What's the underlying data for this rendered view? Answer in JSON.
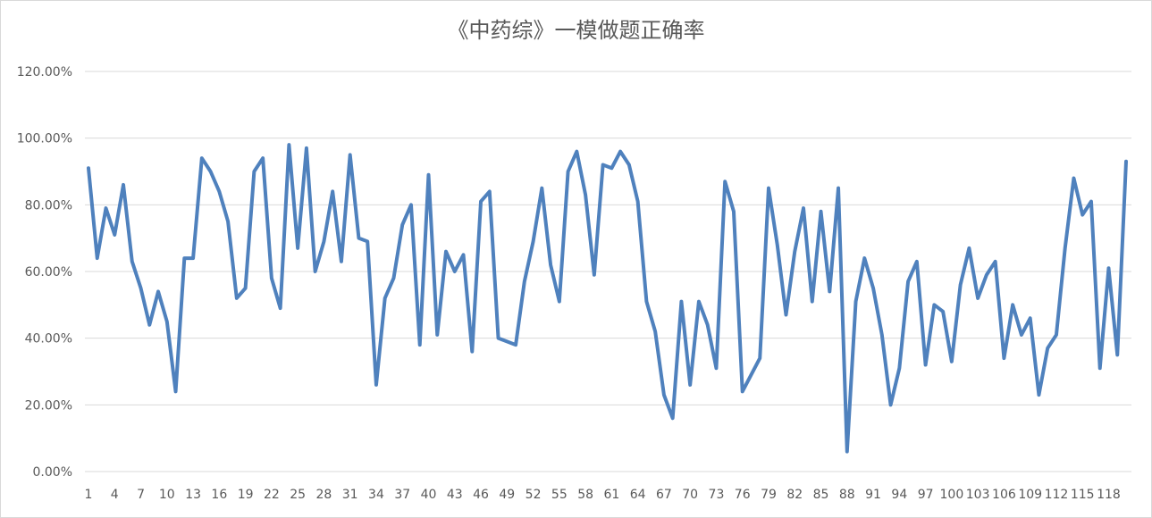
{
  "chart_data": {
    "type": "line",
    "title": "《中药综》一模做题正确率",
    "xlabel": "",
    "ylabel": "",
    "ylim": [
      0,
      1.2
    ],
    "yticks": [
      0,
      0.2,
      0.4,
      0.6,
      0.8,
      1.0,
      1.2
    ],
    "ytick_labels": [
      "0.00%",
      "20.00%",
      "40.00%",
      "60.00%",
      "80.00%",
      "100.00%",
      "120.00%"
    ],
    "xtick_labels": [
      "1",
      "4",
      "7",
      "10",
      "13",
      "16",
      "19",
      "22",
      "25",
      "28",
      "31",
      "34",
      "37",
      "40",
      "43",
      "46",
      "49",
      "52",
      "55",
      "58",
      "61",
      "64",
      "67",
      "70",
      "73",
      "76",
      "79",
      "82",
      "85",
      "88",
      "91",
      "94",
      "97",
      "100",
      "103",
      "106",
      "109",
      "112",
      "115",
      "118"
    ],
    "grid": true,
    "legend": "none",
    "color": "#4f81bd",
    "series": [
      {
        "values": [
          0.91,
          0.64,
          0.79,
          0.71,
          0.86,
          0.63,
          0.55,
          0.44,
          0.54,
          0.45,
          0.24,
          0.64,
          0.64,
          0.94,
          0.9,
          0.84,
          0.75,
          0.52,
          0.55,
          0.9,
          0.94,
          0.58,
          0.49,
          0.98,
          0.67,
          0.97,
          0.6,
          0.69,
          0.84,
          0.63,
          0.95,
          0.7,
          0.69,
          0.26,
          0.52,
          0.58,
          0.74,
          0.8,
          0.38,
          0.89,
          0.41,
          0.66,
          0.6,
          0.65,
          0.36,
          0.81,
          0.84,
          0.4,
          0.39,
          0.38,
          0.57,
          0.69,
          0.85,
          0.62,
          0.51,
          0.9,
          0.96,
          0.83,
          0.59,
          0.92,
          0.91,
          0.96,
          0.92,
          0.81,
          0.51,
          0.42,
          0.23,
          0.16,
          0.51,
          0.26,
          0.51,
          0.44,
          0.31,
          0.87,
          0.78,
          0.24,
          0.29,
          0.34,
          0.85,
          0.68,
          0.47,
          0.66,
          0.79,
          0.51,
          0.78,
          0.54,
          0.85,
          0.06,
          0.51,
          0.64,
          0.55,
          0.41,
          0.2,
          0.31,
          0.57,
          0.63,
          0.32,
          0.5,
          0.48,
          0.33,
          0.56,
          0.67,
          0.52,
          0.59,
          0.63,
          0.34,
          0.5,
          0.41,
          0.46,
          0.23,
          0.37,
          0.41,
          0.67,
          0.88,
          0.77,
          0.81,
          0.31,
          0.61,
          0.35,
          0.93
        ]
      }
    ]
  }
}
